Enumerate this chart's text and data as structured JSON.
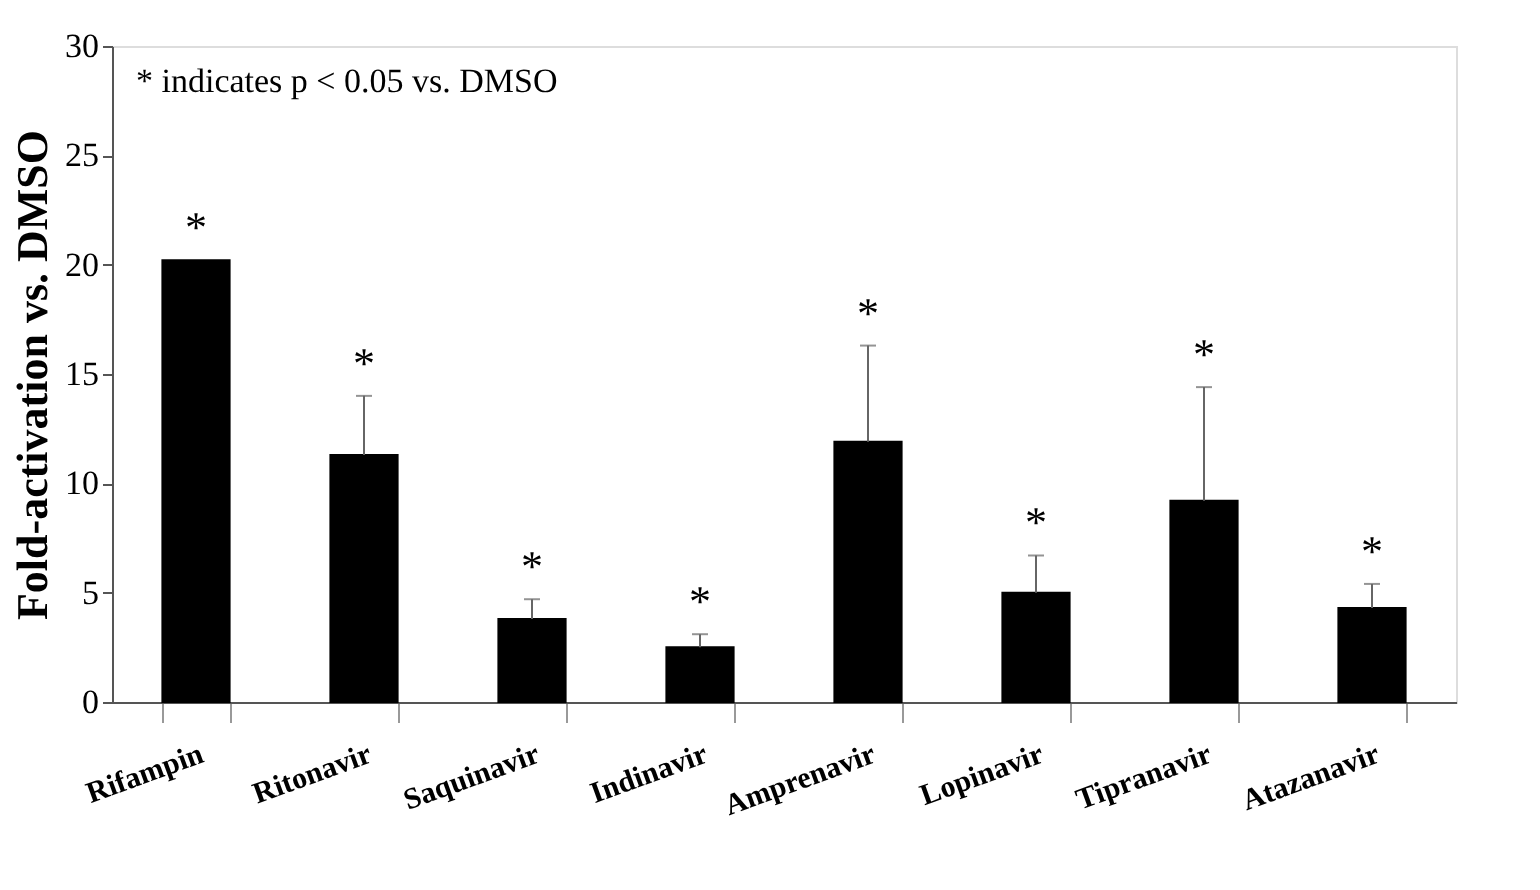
{
  "chart_data": {
    "type": "bar",
    "categories": [
      "Rifampin",
      "Ritonavir",
      "Saquinavir",
      "Indinavir",
      "Amprenavir",
      "Lopinavir",
      "Tipranavir",
      "Atazanavir"
    ],
    "values": [
      20.2,
      11.3,
      3.8,
      2.5,
      11.9,
      5.0,
      9.2,
      4.3
    ],
    "errors": [
      null,
      [
        11.3,
        14.0
      ],
      [
        3.8,
        4.7
      ],
      [
        2.5,
        3.1
      ],
      [
        11.9,
        16.3
      ],
      [
        5.0,
        6.7
      ],
      [
        9.2,
        14.4
      ],
      [
        4.3,
        5.4
      ]
    ],
    "color": "#000000",
    "ylabel": "Fold-activation vs. DMSO",
    "ylim": [
      0,
      30
    ],
    "yticks": [
      0,
      5,
      10,
      15,
      20,
      25,
      30
    ],
    "grid": false,
    "value_labels": [
      "*",
      "*",
      "*",
      "*",
      "*",
      "*",
      "*",
      "*"
    ],
    "annotations": [
      "* indicates  p < 0.05 vs. DMSO"
    ]
  }
}
